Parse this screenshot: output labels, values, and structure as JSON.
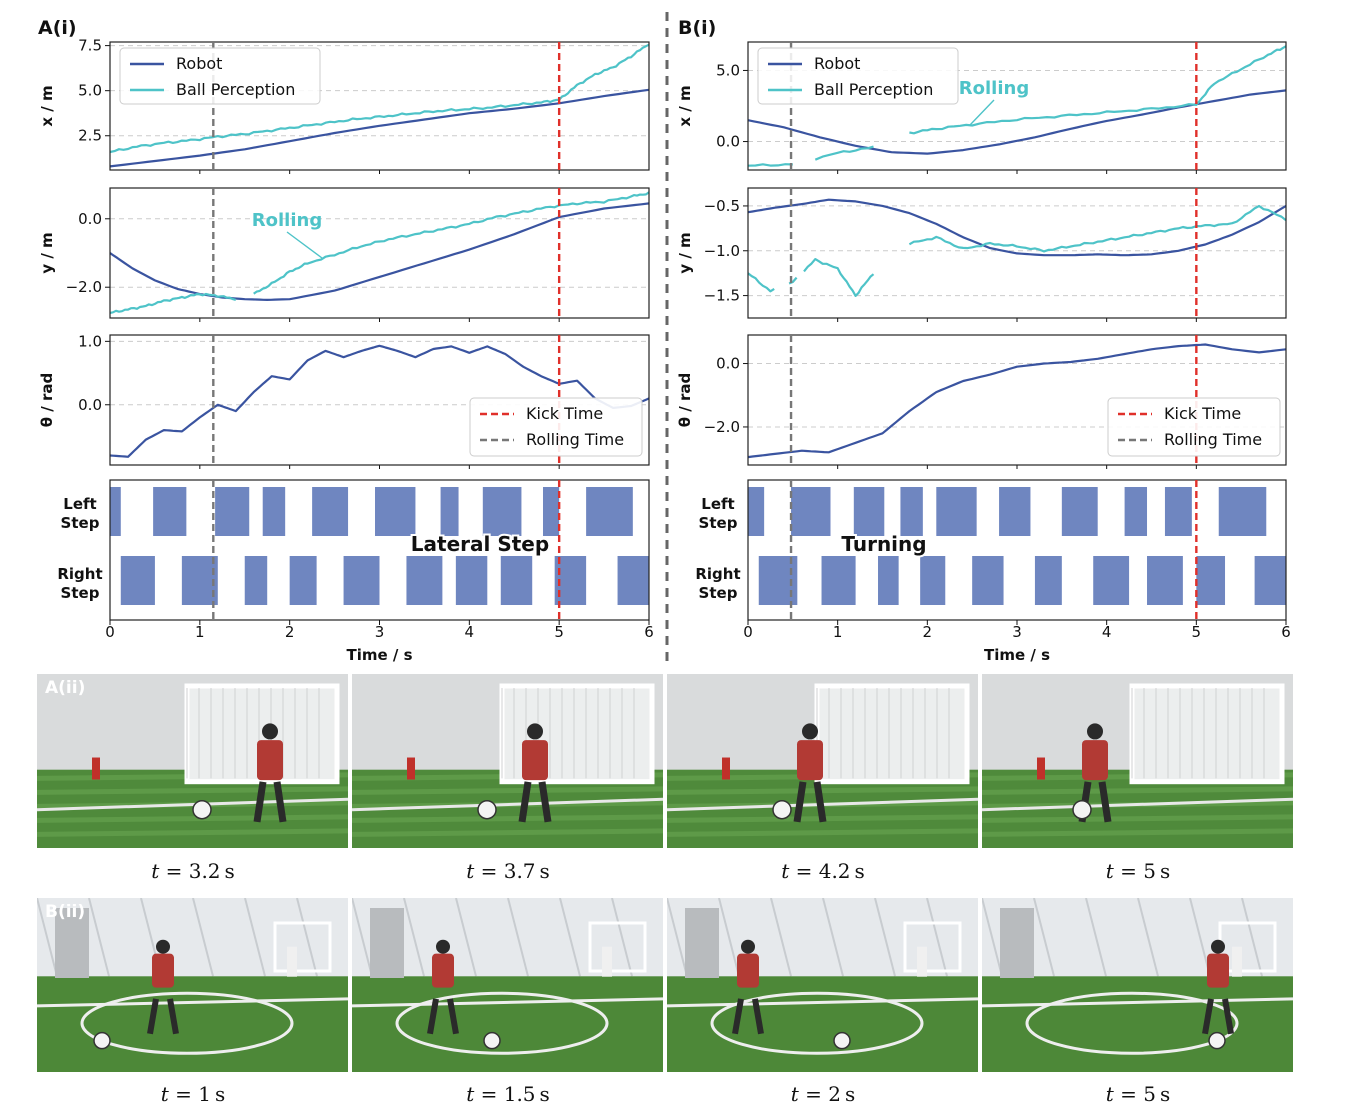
{
  "colors": {
    "robot": "#3a54a0",
    "ball": "#4ec3c8",
    "kick": "#e0302a",
    "rolling": "#777777",
    "step": "#6f86c0",
    "grid": "#cccccc"
  },
  "panels": {
    "A": {
      "label": "A(i)",
      "xlabel": "Time / s",
      "xticks": [
        "0",
        "1",
        "2",
        "3",
        "4",
        "5",
        "6"
      ],
      "step_annotation": "Lateral Step",
      "kick_time": 5.0,
      "rolling_time": 1.15
    },
    "B": {
      "label": "B(i)",
      "xlabel": "Time / s",
      "xticks": [
        "0",
        "1",
        "2",
        "3",
        "4",
        "5",
        "6"
      ],
      "step_annotation": "Turning",
      "kick_time": 5.0,
      "rolling_time": 0.48
    }
  },
  "legend": {
    "robot": "Robot",
    "ball": "Ball Perception",
    "kick": "Kick Time",
    "rolling": "Rolling Time"
  },
  "annotations": {
    "rolling": "Rolling"
  },
  "step_labels": {
    "left": [
      "Left",
      "Step"
    ],
    "right": [
      "Right",
      "Step"
    ]
  },
  "photos": {
    "A_label": "A(ii)",
    "B_label": "B(ii)",
    "A_times": [
      "3.2",
      "3.7",
      "4.2",
      "5"
    ],
    "B_times": [
      "1",
      "1.5",
      "2",
      "5"
    ],
    "unit": "s"
  },
  "chart_data": [
    {
      "type": "line",
      "panel": "A",
      "ylabel": "x / m",
      "xlim": [
        0,
        6
      ],
      "ylim": [
        0.6,
        7.7
      ],
      "yticks": [
        "2.5",
        "5.0",
        "7.5"
      ],
      "series": [
        {
          "name": "Robot",
          "x": [
            0,
            0.5,
            1,
            1.5,
            2,
            2.5,
            3,
            3.5,
            4,
            4.5,
            5,
            5.5,
            6
          ],
          "y": [
            0.8,
            1.1,
            1.4,
            1.75,
            2.2,
            2.65,
            3.05,
            3.4,
            3.75,
            4.0,
            4.3,
            4.7,
            5.05
          ]
        },
        {
          "name": "Ball Perception",
          "x": [
            0,
            0.3,
            0.6,
            0.9,
            1.2,
            1.5,
            1.8,
            2.1,
            2.4,
            2.7,
            3.0,
            3.3,
            3.6,
            3.9,
            4.2,
            4.5,
            4.8,
            5.0,
            5.2,
            5.4,
            5.6,
            5.8,
            6.0
          ],
          "y": [
            1.6,
            1.9,
            2.1,
            2.25,
            2.45,
            2.6,
            2.8,
            3.0,
            3.2,
            3.4,
            3.55,
            3.7,
            3.85,
            3.95,
            4.05,
            4.2,
            4.35,
            4.5,
            5.3,
            5.9,
            6.3,
            6.9,
            7.6
          ]
        }
      ]
    },
    {
      "type": "line",
      "panel": "A",
      "ylabel": "y / m",
      "xlim": [
        0,
        6
      ],
      "ylim": [
        -2.9,
        0.9
      ],
      "yticks": [
        "−2.0",
        "0.0"
      ],
      "series": [
        {
          "name": "Robot",
          "x": [
            0,
            0.25,
            0.5,
            0.75,
            1,
            1.25,
            1.5,
            1.75,
            2,
            2.5,
            3,
            3.5,
            4,
            4.5,
            5,
            5.5,
            6
          ],
          "y": [
            -1.0,
            -1.45,
            -1.8,
            -2.05,
            -2.2,
            -2.3,
            -2.35,
            -2.37,
            -2.35,
            -2.1,
            -1.7,
            -1.3,
            -0.9,
            -0.45,
            0.05,
            0.3,
            0.45
          ]
        },
        {
          "name": "Ball Perception",
          "x": [
            0,
            0.2,
            0.4,
            0.6,
            0.8,
            1.0,
            1.2,
            1.4,
            1.6,
            1.8,
            2.0,
            2.2,
            2.5,
            2.8,
            3.1,
            3.4,
            3.7,
            4.0,
            4.3,
            4.6,
            4.9,
            5.2,
            5.5,
            5.8,
            6.0
          ],
          "y": [
            -2.75,
            -2.65,
            -2.55,
            -2.4,
            -2.3,
            -2.2,
            -2.25,
            -2.35,
            -2.2,
            -1.9,
            -1.55,
            -1.3,
            -1.05,
            -0.8,
            -0.6,
            -0.45,
            -0.3,
            -0.15,
            0.05,
            0.2,
            0.35,
            0.45,
            0.5,
            0.65,
            0.75
          ]
        }
      ]
    },
    {
      "type": "line",
      "panel": "A",
      "ylabel": "θ / rad",
      "xlim": [
        0,
        6
      ],
      "ylim": [
        -0.95,
        1.1
      ],
      "yticks": [
        "0.0",
        "1.0"
      ],
      "series": [
        {
          "name": "Robot",
          "x": [
            0,
            0.2,
            0.4,
            0.6,
            0.8,
            1.0,
            1.2,
            1.4,
            1.6,
            1.8,
            2.0,
            2.2,
            2.4,
            2.6,
            2.8,
            3.0,
            3.2,
            3.4,
            3.6,
            3.8,
            4.0,
            4.2,
            4.4,
            4.6,
            4.8,
            5.0,
            5.2,
            5.4,
            5.6,
            5.8,
            6.0
          ],
          "y": [
            -0.8,
            -0.82,
            -0.55,
            -0.4,
            -0.42,
            -0.2,
            0.0,
            -0.1,
            0.2,
            0.45,
            0.4,
            0.7,
            0.85,
            0.75,
            0.85,
            0.93,
            0.85,
            0.75,
            0.88,
            0.92,
            0.82,
            0.92,
            0.8,
            0.6,
            0.45,
            0.33,
            0.38,
            0.1,
            -0.05,
            -0.02,
            0.1
          ]
        }
      ]
    },
    {
      "type": "line",
      "panel": "B",
      "ylabel": "x / m",
      "xlim": [
        0,
        6
      ],
      "ylim": [
        -2.0,
        7.0
      ],
      "yticks": [
        "0.0",
        "5.0"
      ],
      "series": [
        {
          "name": "Robot",
          "x": [
            0,
            0.4,
            0.8,
            1.2,
            1.6,
            2.0,
            2.4,
            2.8,
            3.2,
            3.6,
            4.0,
            4.4,
            4.8,
            5.2,
            5.6,
            6.0
          ],
          "y": [
            1.5,
            1.0,
            0.3,
            -0.3,
            -0.75,
            -0.85,
            -0.6,
            -0.2,
            0.3,
            0.9,
            1.45,
            1.9,
            2.4,
            2.85,
            3.3,
            3.6
          ]
        },
        {
          "name": "Ball Perception",
          "x": [
            0,
            0.5,
            1.0,
            1.4,
            1.8,
            2.1,
            2.5,
            3.0,
            3.5,
            4.0,
            4.5,
            5.0,
            5.2,
            5.5,
            5.8,
            6.0
          ],
          "y": [
            -1.7,
            -1.6,
            -0.8,
            -0.4,
            0.6,
            0.9,
            1.2,
            1.55,
            1.8,
            2.05,
            2.3,
            2.6,
            4.1,
            5.1,
            6.1,
            6.7
          ]
        }
      ]
    },
    {
      "type": "line",
      "panel": "B",
      "ylabel": "y / m",
      "xlim": [
        0,
        6
      ],
      "ylim": [
        -1.75,
        -0.3
      ],
      "yticks": [
        "−1.5",
        "−1.0",
        "−0.5"
      ],
      "series": [
        {
          "name": "Robot",
          "x": [
            0,
            0.3,
            0.6,
            0.9,
            1.2,
            1.5,
            1.8,
            2.1,
            2.4,
            2.7,
            3.0,
            3.3,
            3.6,
            3.9,
            4.2,
            4.5,
            4.8,
            5.1,
            5.4,
            5.7,
            6.0
          ],
          "y": [
            -0.57,
            -0.52,
            -0.48,
            -0.43,
            -0.45,
            -0.5,
            -0.58,
            -0.7,
            -0.85,
            -0.97,
            -1.03,
            -1.05,
            -1.05,
            -1.04,
            -1.05,
            -1.04,
            -1.0,
            -0.93,
            -0.82,
            -0.68,
            -0.5
          ]
        },
        {
          "name": "Ball Perception",
          "x": [
            0,
            0.25,
            0.5,
            0.75,
            1.0,
            1.2,
            1.4,
            1.8,
            2.1,
            2.4,
            2.7,
            3.0,
            3.3,
            3.6,
            3.9,
            4.2,
            4.5,
            4.8,
            5.1,
            5.4,
            5.7,
            6.0
          ],
          "y": [
            -1.25,
            -1.45,
            -1.35,
            -1.1,
            -1.2,
            -1.5,
            -1.25,
            -0.92,
            -0.85,
            -0.98,
            -0.92,
            -0.95,
            -1.0,
            -0.95,
            -0.9,
            -0.85,
            -0.8,
            -0.75,
            -0.72,
            -0.7,
            -0.5,
            -0.65
          ]
        }
      ]
    },
    {
      "type": "line",
      "panel": "B",
      "ylabel": "θ / rad",
      "xlim": [
        0,
        6
      ],
      "ylim": [
        -3.2,
        0.9
      ],
      "yticks": [
        "−2.0",
        "0.0"
      ],
      "series": [
        {
          "name": "Robot",
          "x": [
            0,
            0.3,
            0.6,
            0.9,
            1.2,
            1.5,
            1.8,
            2.1,
            2.4,
            2.7,
            3.0,
            3.3,
            3.6,
            3.9,
            4.2,
            4.5,
            4.8,
            5.1,
            5.4,
            5.7,
            6.0
          ],
          "y": [
            -2.95,
            -2.85,
            -2.75,
            -2.8,
            -2.5,
            -2.2,
            -1.5,
            -0.9,
            -0.55,
            -0.35,
            -0.1,
            0.0,
            0.05,
            0.15,
            0.3,
            0.45,
            0.55,
            0.6,
            0.45,
            0.35,
            0.45
          ]
        }
      ]
    },
    {
      "type": "bar",
      "panel": "A",
      "name": "Left Step intervals",
      "xlim": [
        0,
        6
      ],
      "intervals": [
        [
          0,
          0.12
        ],
        [
          0.48,
          0.85
        ],
        [
          1.17,
          1.55
        ],
        [
          1.7,
          1.95
        ],
        [
          2.25,
          2.65
        ],
        [
          2.95,
          3.4
        ],
        [
          3.68,
          3.88
        ],
        [
          4.15,
          4.58
        ],
        [
          4.82,
          5.0
        ],
        [
          5.3,
          5.82
        ]
      ]
    },
    {
      "type": "bar",
      "panel": "A",
      "name": "Right Step intervals",
      "xlim": [
        0,
        6
      ],
      "intervals": [
        [
          0.12,
          0.5
        ],
        [
          0.8,
          1.2
        ],
        [
          1.5,
          1.75
        ],
        [
          2.0,
          2.3
        ],
        [
          2.6,
          3.0
        ],
        [
          3.3,
          3.7
        ],
        [
          3.85,
          4.2
        ],
        [
          4.35,
          4.7
        ],
        [
          4.95,
          5.3
        ],
        [
          5.65,
          6.0
        ]
      ]
    },
    {
      "type": "bar",
      "panel": "B",
      "name": "Left Step intervals",
      "xlim": [
        0,
        6
      ],
      "intervals": [
        [
          0,
          0.18
        ],
        [
          0.48,
          0.92
        ],
        [
          1.18,
          1.52
        ],
        [
          1.7,
          1.95
        ],
        [
          2.1,
          2.55
        ],
        [
          2.8,
          3.15
        ],
        [
          3.5,
          3.9
        ],
        [
          4.2,
          4.45
        ],
        [
          4.65,
          4.95
        ],
        [
          5.25,
          5.78
        ]
      ]
    },
    {
      "type": "bar",
      "panel": "B",
      "name": "Right Step intervals",
      "xlim": [
        0,
        6
      ],
      "intervals": [
        [
          0.12,
          0.55
        ],
        [
          0.82,
          1.2
        ],
        [
          1.45,
          1.68
        ],
        [
          1.92,
          2.2
        ],
        [
          2.5,
          2.85
        ],
        [
          3.2,
          3.5
        ],
        [
          3.85,
          4.25
        ],
        [
          4.45,
          4.85
        ],
        [
          5.0,
          5.32
        ],
        [
          5.65,
          6.0
        ]
      ]
    }
  ]
}
